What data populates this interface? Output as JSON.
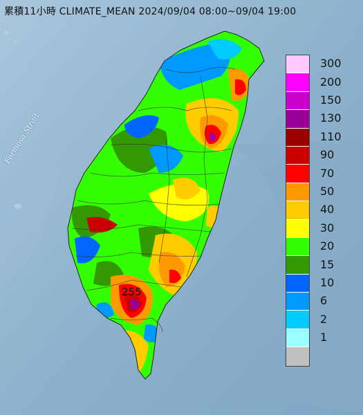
{
  "title": "累積11小時 CLIMATE_MEAN 2024/09/04 08:00~09/04 19:00",
  "sea_label": "Formosa Strait",
  "max_value_label": "255",
  "legend": {
    "items": [
      {
        "label": "300",
        "color": "#ffc8ff"
      },
      {
        "label": "200",
        "color": "#ff00ff"
      },
      {
        "label": "150",
        "color": "#cc00cc"
      },
      {
        "label": "130",
        "color": "#990099"
      },
      {
        "label": "110",
        "color": "#990000"
      },
      {
        "label": "90",
        "color": "#cc0000"
      },
      {
        "label": "70",
        "color": "#ff0000"
      },
      {
        "label": "50",
        "color": "#ff9900"
      },
      {
        "label": "40",
        "color": "#ffcc00"
      },
      {
        "label": "30",
        "color": "#ffff00"
      },
      {
        "label": "20",
        "color": "#33ff00"
      },
      {
        "label": "15",
        "color": "#339900"
      },
      {
        "label": "10",
        "color": "#0066ff"
      },
      {
        "label": "6",
        "color": "#0099ff"
      },
      {
        "label": "2",
        "color": "#00ccff"
      },
      {
        "label": "1",
        "color": "#99ffff"
      },
      {
        "label": "",
        "color": "#c0c0c0"
      }
    ]
  },
  "colors": {
    "sea": "#8fb4cf",
    "land_base": "#33ff00"
  }
}
